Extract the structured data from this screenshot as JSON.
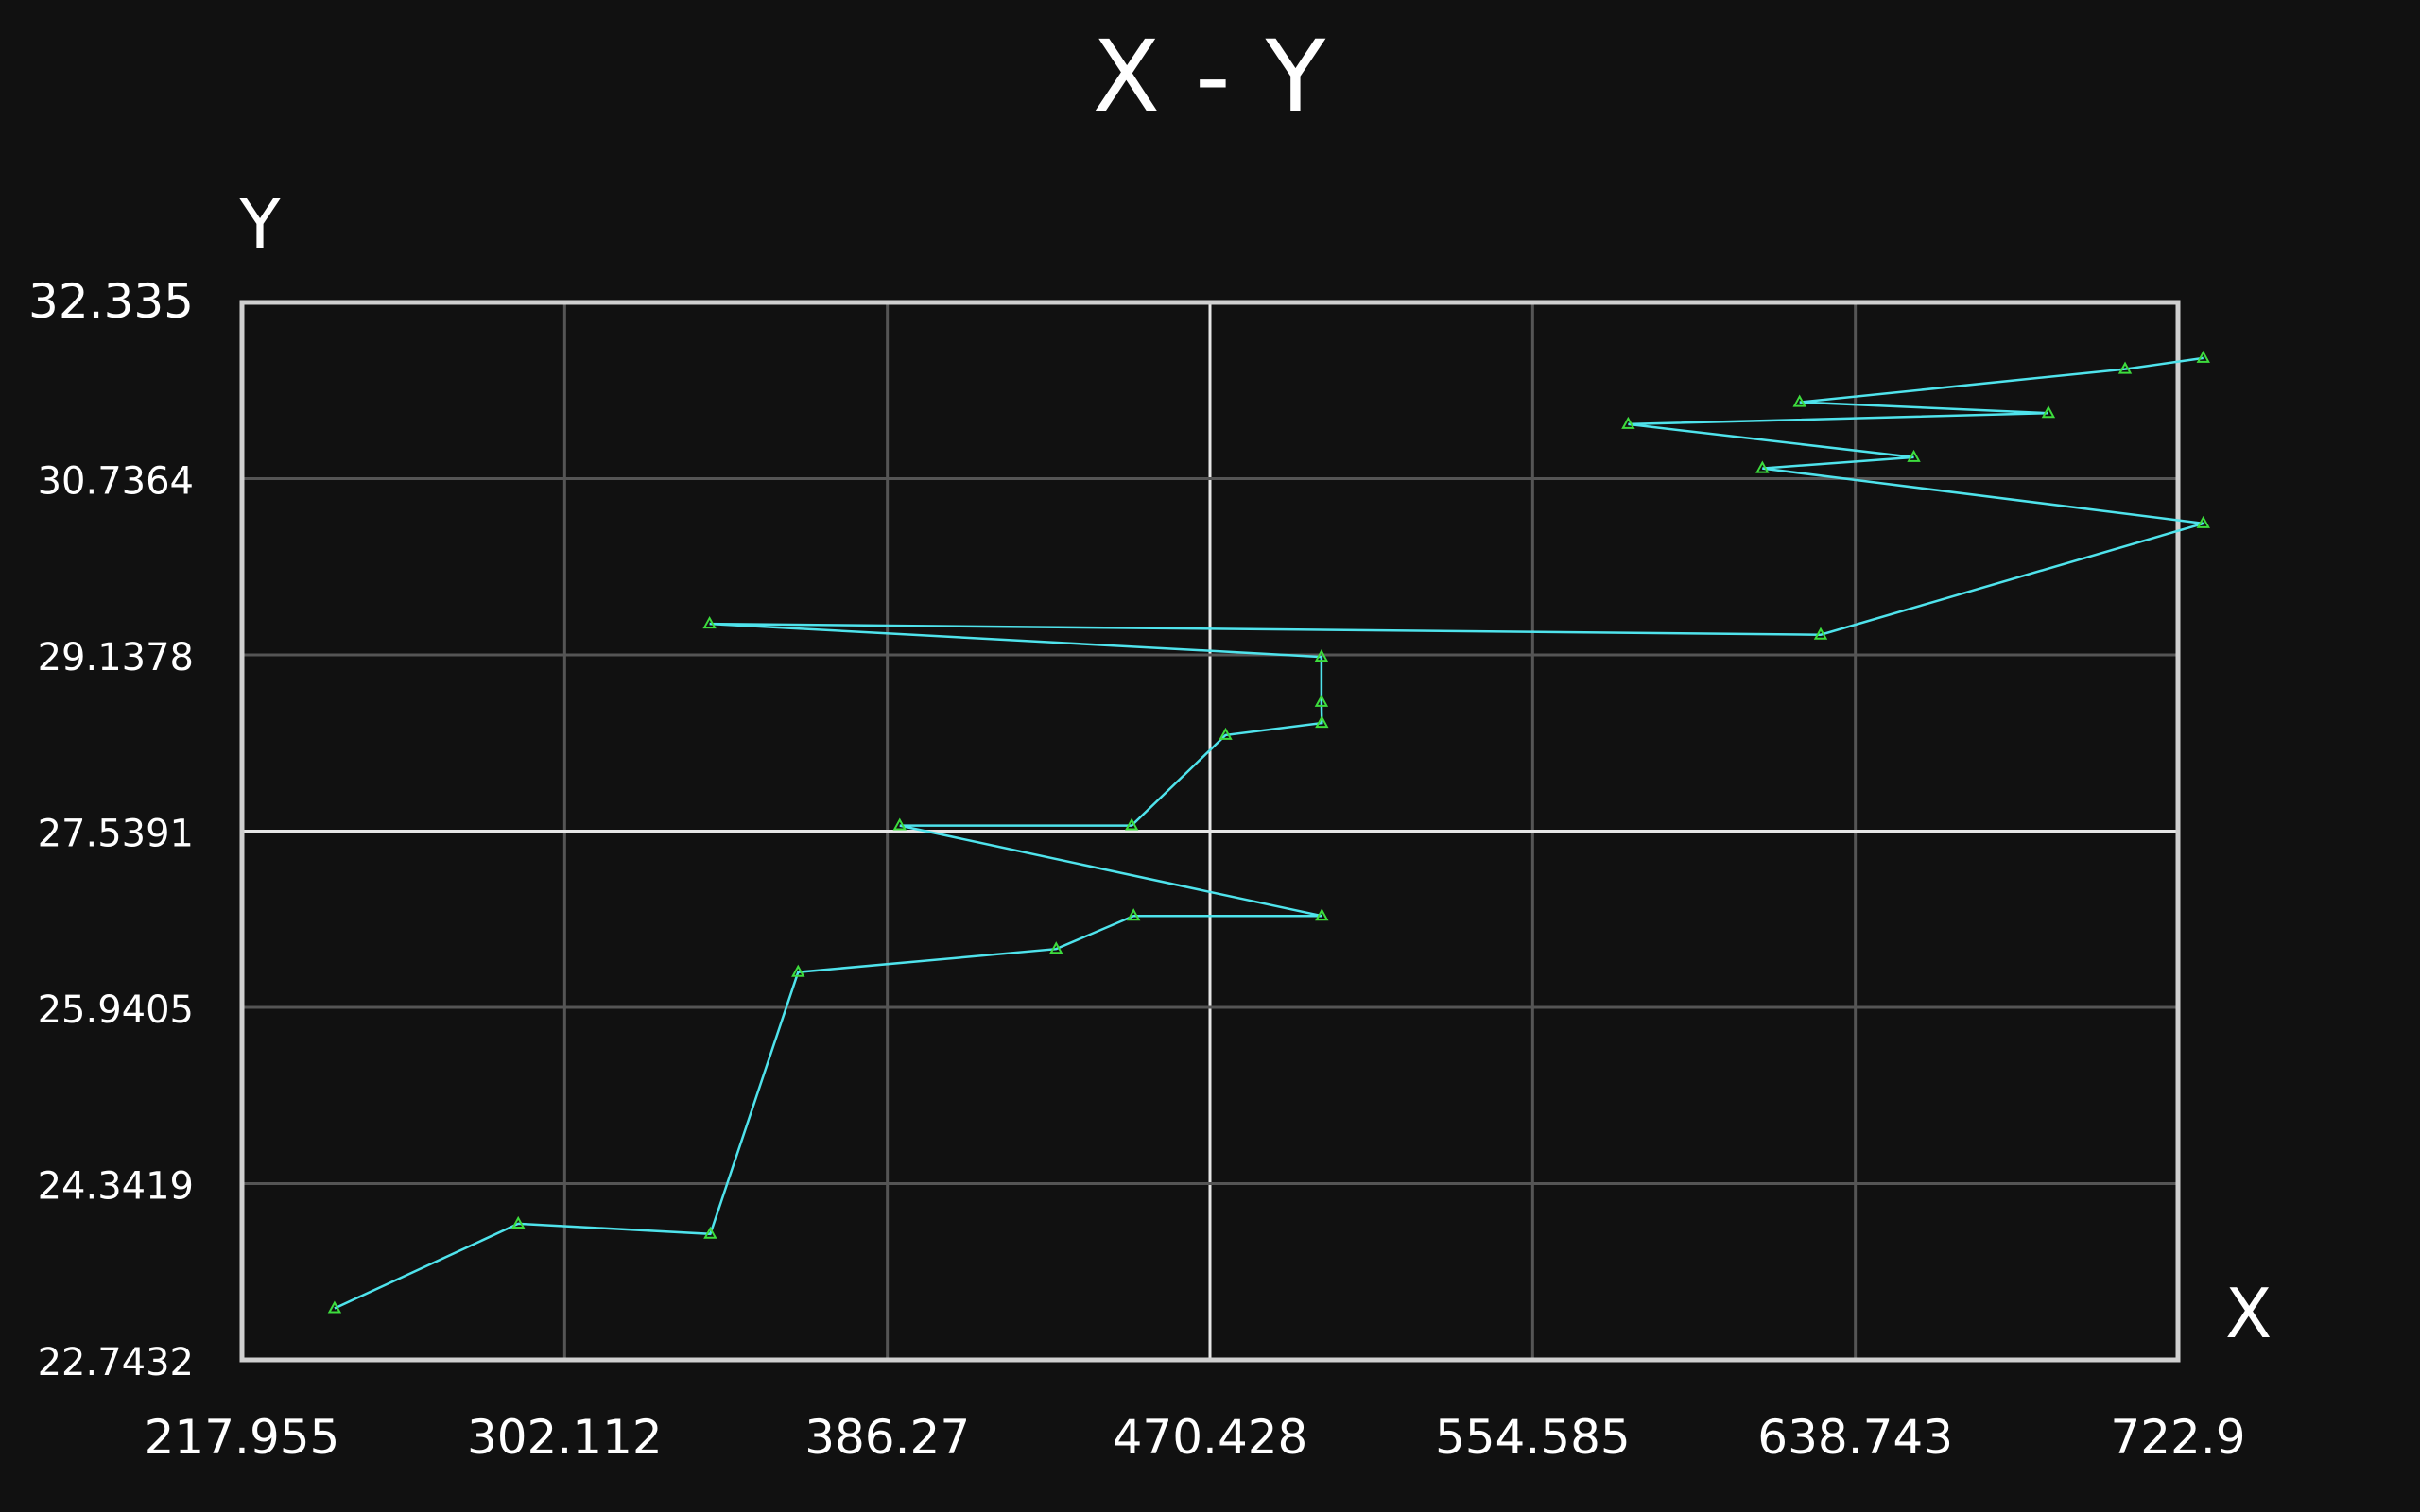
{
  "chart_data": {
    "type": "line",
    "title": "X - Y",
    "xlabel": "X",
    "ylabel": "Y",
    "xlim": [
      217.955,
      722.9
    ],
    "ylim": [
      22.7432,
      32.335
    ],
    "x_ticks": [
      "217.955",
      "302.112",
      "386.27",
      "470.428",
      "554.585",
      "638.743",
      "722.9"
    ],
    "y_ticks": [
      "32.335",
      "30.7364",
      "29.1378",
      "27.5391",
      "25.9405",
      "24.3419",
      "22.7432"
    ],
    "grid": true,
    "colors": {
      "background": "#111111",
      "line": "#4fe3ec",
      "marker": "#3ddc3d",
      "grid": "#555555",
      "center_grid": "#e6e6e6",
      "frame": "#d0d0d0"
    },
    "series": [
      {
        "marker": "triangle",
        "x": [
          242.1,
          290.0,
          340.1,
          363.0,
          430.3,
          450.5,
          499.6,
          389.5,
          450.0,
          474.5,
          499.6,
          499.5,
          499.5,
          339.9,
          629.7,
          729.5,
          614.5,
          654.0,
          579.5,
          689.1,
          624.2,
          709.1,
          729.5
        ],
        "y": [
          23.21,
          23.978,
          23.885,
          26.26,
          26.47,
          26.77,
          26.77,
          27.59,
          27.59,
          28.41,
          28.52,
          28.71,
          29.12,
          29.42,
          29.32,
          30.33,
          30.83,
          30.93,
          31.23,
          31.33,
          31.43,
          31.73,
          31.83
        ]
      }
    ]
  }
}
